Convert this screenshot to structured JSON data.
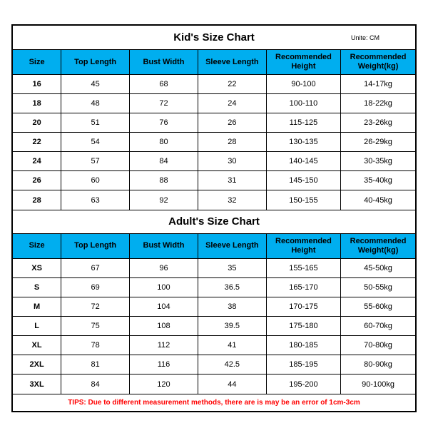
{
  "unite_label": "Unite: CM",
  "kids": {
    "title": "Kid's Size Chart",
    "columns": [
      "Size",
      "Top Length",
      "Bust Width",
      "Sleeve Length",
      "Recommended Height",
      "Recommended Weight(kg)"
    ],
    "rows": [
      [
        "16",
        "45",
        "68",
        "22",
        "90-100",
        "14-17kg"
      ],
      [
        "18",
        "48",
        "72",
        "24",
        "100-110",
        "18-22kg"
      ],
      [
        "20",
        "51",
        "76",
        "26",
        "115-125",
        "23-26kg"
      ],
      [
        "22",
        "54",
        "80",
        "28",
        "130-135",
        "26-29kg"
      ],
      [
        "24",
        "57",
        "84",
        "30",
        "140-145",
        "30-35kg"
      ],
      [
        "26",
        "60",
        "88",
        "31",
        "145-150",
        "35-40kg"
      ],
      [
        "28",
        "63",
        "92",
        "32",
        "150-155",
        "40-45kg"
      ]
    ]
  },
  "adults": {
    "title": "Adult's Size Chart",
    "columns": [
      "Size",
      "Top Length",
      "Bust Width",
      "Sleeve Length",
      "Recommended Height",
      "Recommended Weight(kg)"
    ],
    "rows": [
      [
        "XS",
        "67",
        "96",
        "35",
        "155-165",
        "45-50kg"
      ],
      [
        "S",
        "69",
        "100",
        "36.5",
        "165-170",
        "50-55kg"
      ],
      [
        "M",
        "72",
        "104",
        "38",
        "170-175",
        "55-60kg"
      ],
      [
        "L",
        "75",
        "108",
        "39.5",
        "175-180",
        "60-70kg"
      ],
      [
        "XL",
        "78",
        "112",
        "41",
        "180-185",
        "70-80kg"
      ],
      [
        "2XL",
        "81",
        "116",
        "42.5",
        "185-195",
        "80-90kg"
      ],
      [
        "3XL",
        "84",
        "120",
        "44",
        "195-200",
        "90-100kg"
      ]
    ]
  },
  "tips": "TIPS: Due to different measurement methods, there are is may be an error of 1cm-3cm",
  "style": {
    "header_bg": "#00aeef",
    "border_color": "#000000",
    "tips_color": "#ff0000",
    "background": "#ffffff",
    "title_fontsize": 15,
    "header_fontsize": 11,
    "cell_fontsize": 11,
    "tips_fontsize": 10
  }
}
